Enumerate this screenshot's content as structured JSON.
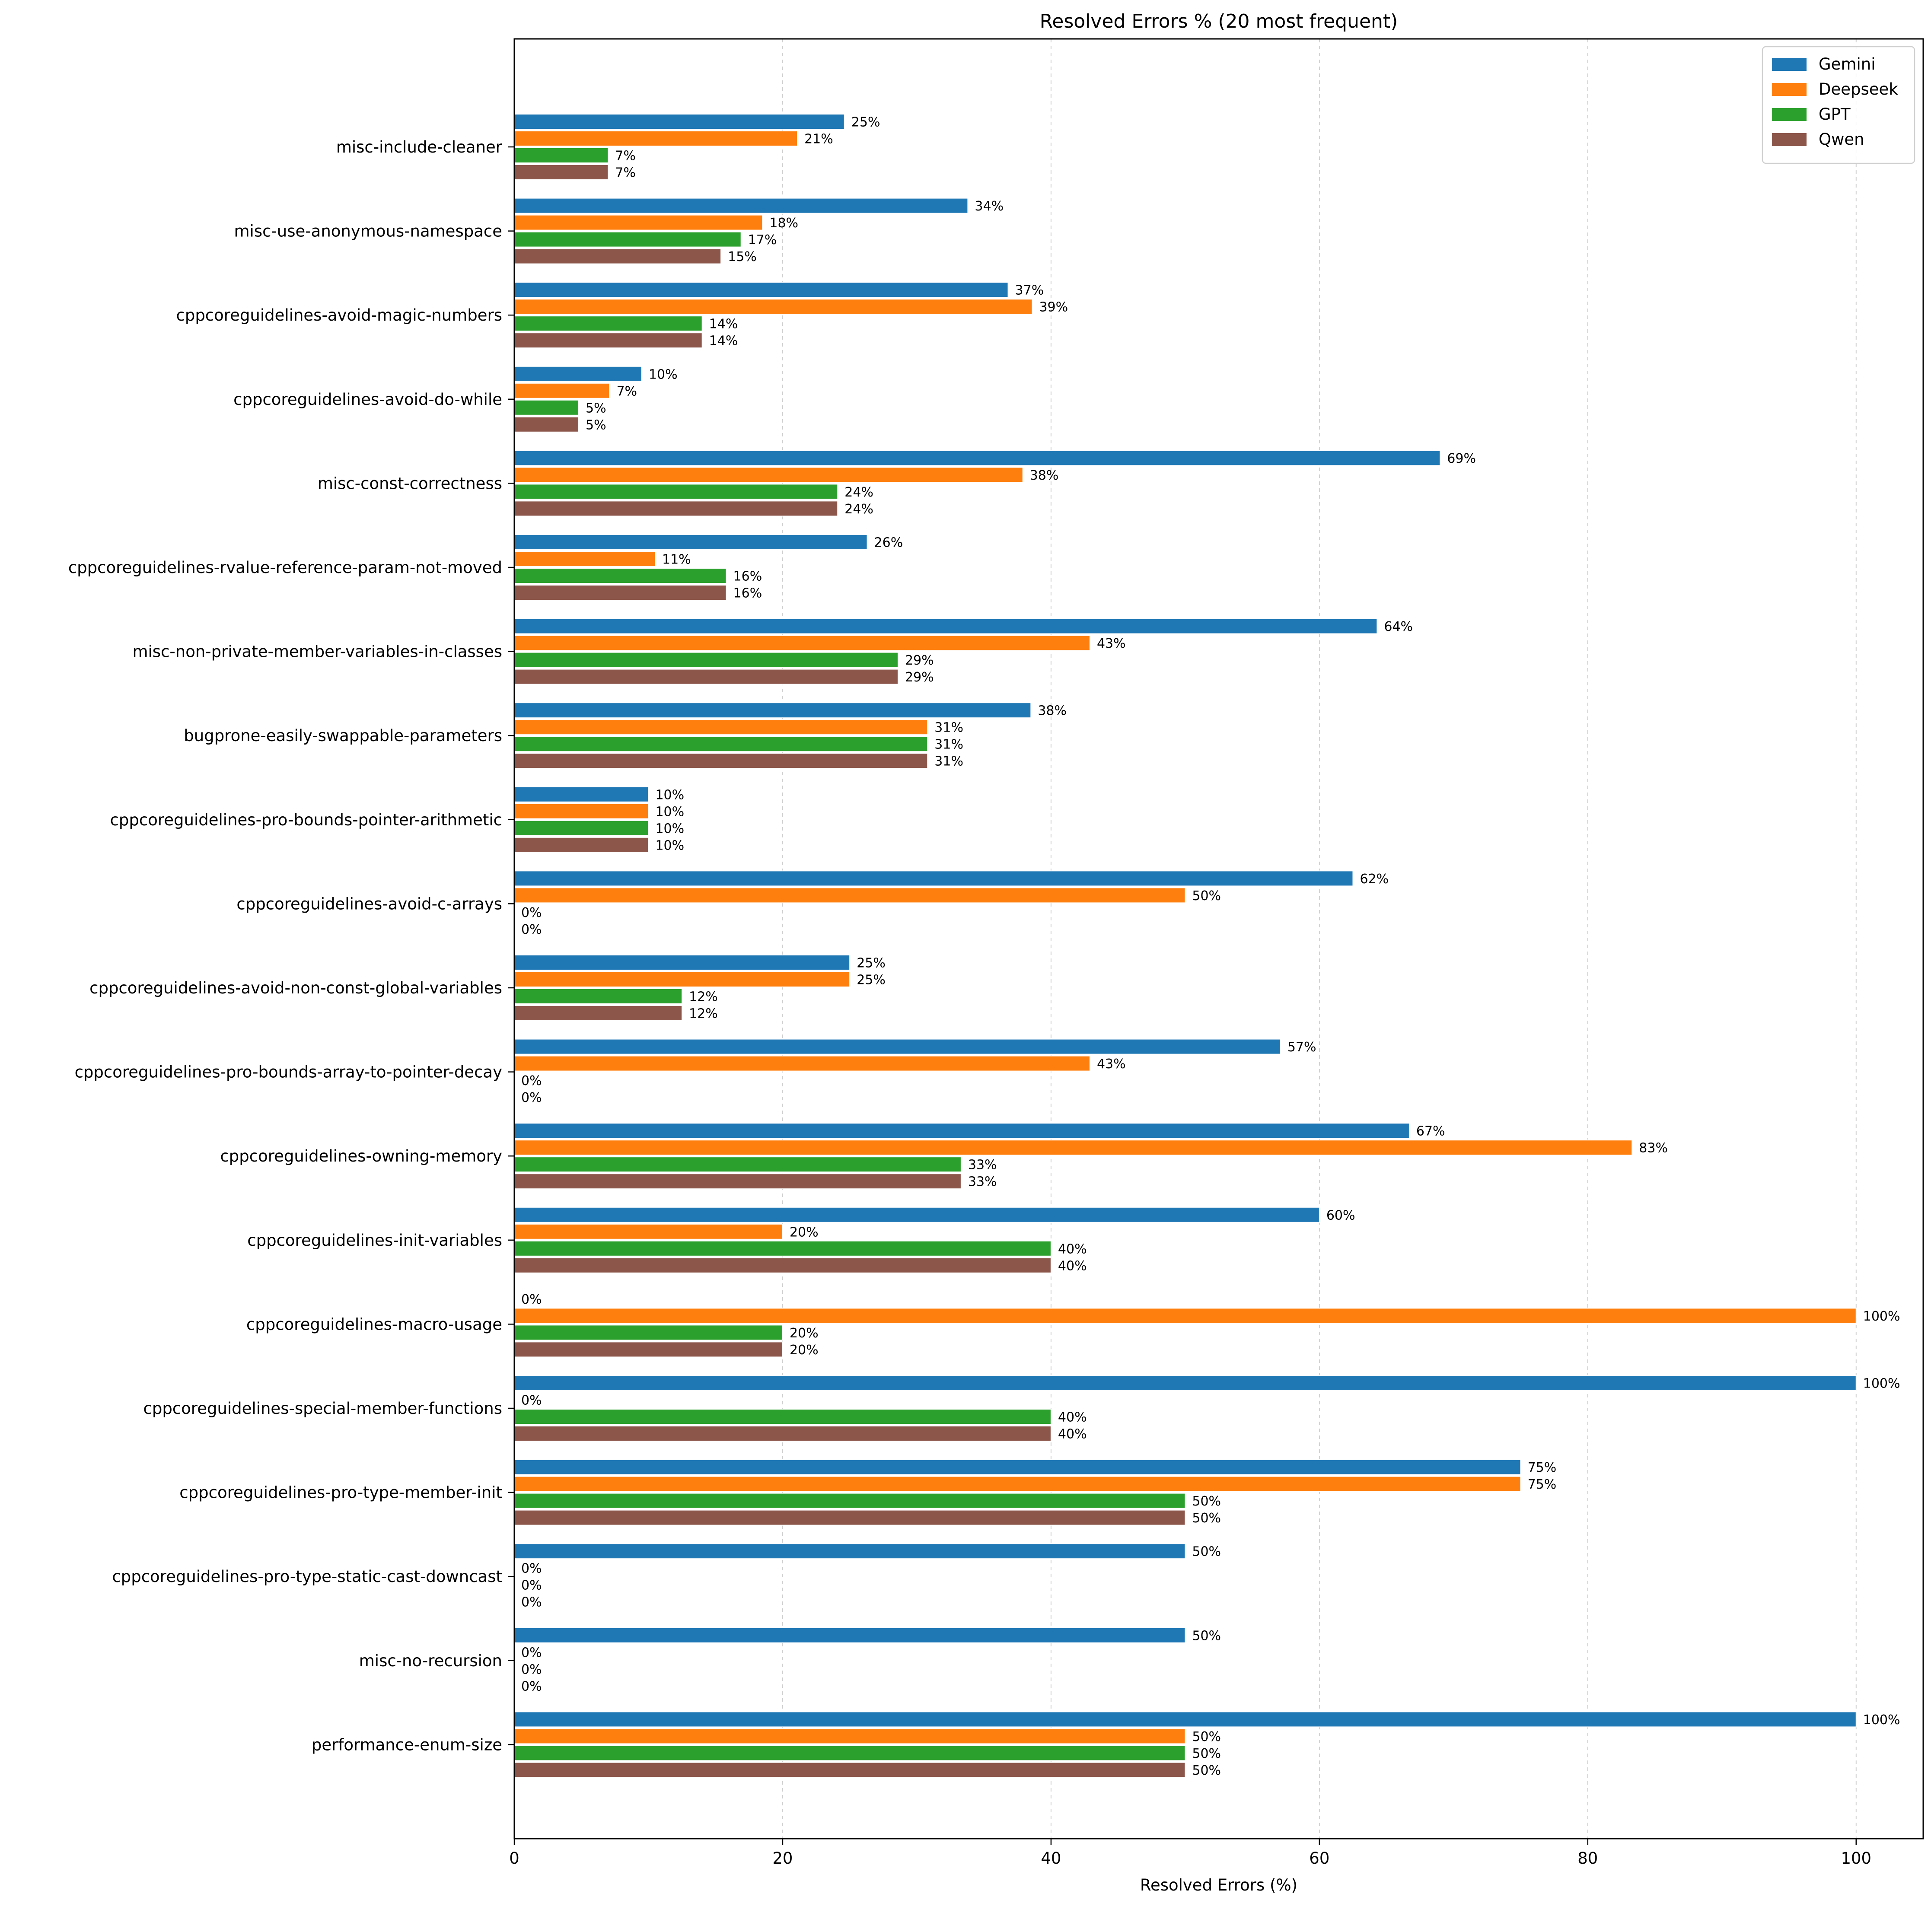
{
  "chart_data": {
    "type": "bar",
    "orientation": "horizontal",
    "title": "Resolved Errors % (20 most frequent)",
    "xlabel": "Resolved Errors (%)",
    "ylabel": "",
    "xlim": [
      0,
      105
    ],
    "xticks": [
      0,
      20,
      40,
      60,
      80,
      100
    ],
    "grid": "x-dashed",
    "legend_position": "top-right",
    "categories": [
      "misc-include-cleaner",
      "misc-use-anonymous-namespace",
      "cppcoreguidelines-avoid-magic-numbers",
      "cppcoreguidelines-avoid-do-while",
      "misc-const-correctness",
      "cppcoreguidelines-rvalue-reference-param-not-moved",
      "misc-non-private-member-variables-in-classes",
      "bugprone-easily-swappable-parameters",
      "cppcoreguidelines-pro-bounds-pointer-arithmetic",
      "cppcoreguidelines-avoid-c-arrays",
      "cppcoreguidelines-avoid-non-const-global-variables",
      "cppcoreguidelines-pro-bounds-array-to-pointer-decay",
      "cppcoreguidelines-owning-memory",
      "cppcoreguidelines-init-variables",
      "cppcoreguidelines-macro-usage",
      "cppcoreguidelines-special-member-functions",
      "cppcoreguidelines-pro-type-member-init",
      "cppcoreguidelines-pro-type-static-cast-downcast",
      "misc-no-recursion",
      "performance-enum-size"
    ],
    "series": [
      {
        "name": "Gemini",
        "color": "#1f77b4",
        "values": [
          24.6,
          33.8,
          36.8,
          9.5,
          69.0,
          26.3,
          64.3,
          38.5,
          10.0,
          62.5,
          25.0,
          57.1,
          66.7,
          60.0,
          0,
          100,
          75,
          50,
          50,
          100
        ],
        "labels": [
          "25%",
          "34%",
          "37%",
          "10%",
          "69%",
          "26%",
          "64%",
          "38%",
          "10%",
          "62%",
          "25%",
          "57%",
          "67%",
          "60%",
          "0%",
          "100%",
          "75%",
          "50%",
          "50%",
          "100%"
        ]
      },
      {
        "name": "Deepseek",
        "color": "#ff7f0e",
        "values": [
          21.1,
          18.5,
          38.6,
          7.1,
          37.9,
          10.5,
          42.9,
          30.8,
          10.0,
          50.0,
          25.0,
          42.9,
          83.3,
          20.0,
          100,
          0,
          75,
          0,
          0,
          50
        ],
        "labels": [
          "21%",
          "18%",
          "39%",
          "7%",
          "38%",
          "11%",
          "43%",
          "31%",
          "10%",
          "50%",
          "25%",
          "43%",
          "83%",
          "20%",
          "100%",
          "0%",
          "75%",
          "0%",
          "0%",
          "50%"
        ]
      },
      {
        "name": "GPT",
        "color": "#2ca02c",
        "values": [
          7.0,
          16.9,
          14.0,
          4.8,
          24.1,
          15.8,
          28.6,
          30.8,
          10.0,
          0,
          12.5,
          0,
          33.3,
          40.0,
          20.0,
          40.0,
          50,
          0,
          0,
          50
        ],
        "labels": [
          "7%",
          "17%",
          "14%",
          "5%",
          "24%",
          "16%",
          "29%",
          "31%",
          "10%",
          "0%",
          "12%",
          "0%",
          "33%",
          "40%",
          "20%",
          "40%",
          "50%",
          "0%",
          "0%",
          "50%"
        ]
      },
      {
        "name": "Qwen",
        "color": "#8c564b",
        "values": [
          7.0,
          15.4,
          14.0,
          4.8,
          24.1,
          15.8,
          28.6,
          30.8,
          10.0,
          0,
          12.5,
          0,
          33.3,
          40.0,
          20.0,
          40.0,
          50,
          0,
          0,
          50
        ],
        "labels": [
          "7%",
          "15%",
          "14%",
          "5%",
          "24%",
          "16%",
          "29%",
          "31%",
          "10%",
          "0%",
          "12%",
          "0%",
          "33%",
          "40%",
          "20%",
          "40%",
          "50%",
          "0%",
          "0%",
          "50%"
        ]
      }
    ]
  }
}
